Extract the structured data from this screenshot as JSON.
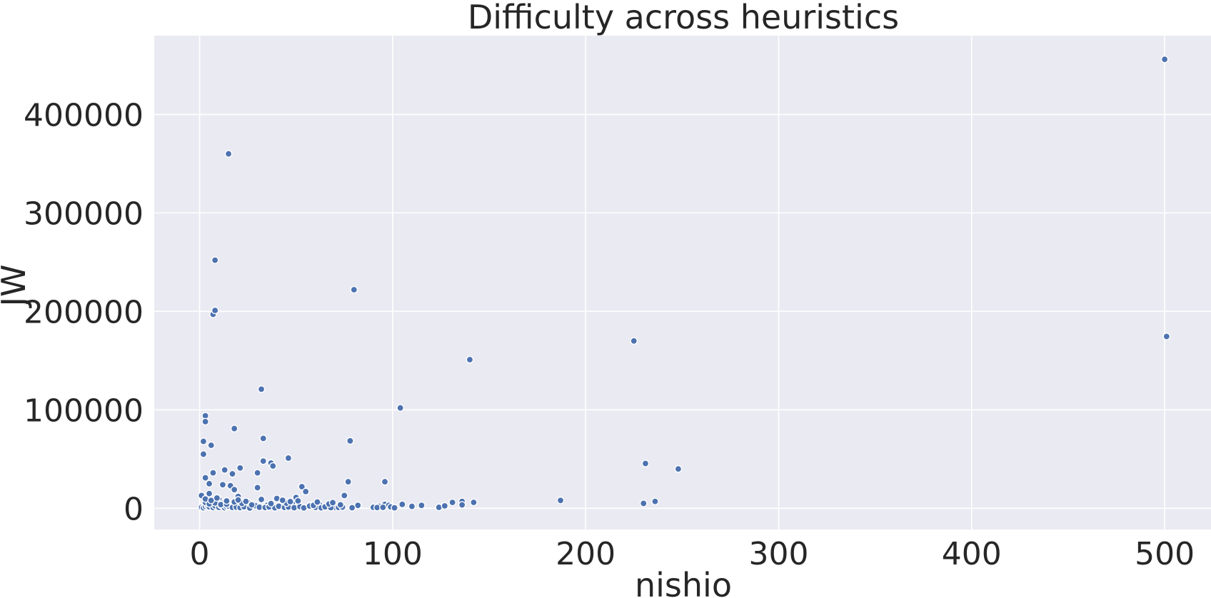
{
  "chart_data": {
    "type": "scatter",
    "title": "Difficulty across heuristics",
    "xlabel": "nishio",
    "ylabel": "JW",
    "xlim": [
      -23.5,
      524
    ],
    "ylim": [
      -21500,
      480000
    ],
    "xticks": [
      0,
      100,
      200,
      300,
      400,
      500
    ],
    "yticks": [
      0,
      100000,
      200000,
      300000,
      400000
    ],
    "grid": true,
    "colors": {
      "background": "#eaeaf2",
      "grid": "#ffffff",
      "point": "#4c72b0",
      "text": "#262626"
    },
    "series": [
      {
        "x": [
          500,
          501,
          15,
          8,
          80,
          7,
          8,
          225,
          140,
          32,
          104,
          3,
          3,
          18,
          33,
          2,
          6,
          78,
          46,
          2,
          33,
          37,
          38,
          231,
          13,
          21,
          248,
          17,
          7,
          30,
          3,
          96,
          5,
          12,
          16,
          77,
          30,
          53,
          55,
          18,
          2,
          4,
          5,
          10,
          1,
          6,
          9,
          12,
          20,
          25,
          28,
          35,
          40,
          42,
          48,
          50,
          58,
          62,
          66,
          70,
          75,
          82,
          90,
          93,
          96,
          98,
          100,
          105,
          110,
          115,
          124,
          127,
          131,
          136,
          136,
          142,
          187,
          230,
          236,
          1,
          2,
          3,
          4,
          5,
          6,
          7,
          8,
          10,
          11,
          13,
          14,
          15,
          17,
          19,
          21,
          23,
          26,
          29,
          31,
          34,
          36,
          39,
          41,
          44,
          46,
          49,
          52,
          54,
          57,
          60,
          63,
          65,
          68,
          72,
          74,
          79,
          92,
          95,
          99,
          101,
          3,
          5,
          8,
          11,
          14,
          18,
          22,
          27,
          37,
          45,
          59,
          67,
          73,
          3,
          6,
          9,
          14,
          20,
          24,
          32,
          43,
          47,
          51,
          61,
          69
        ],
        "y": [
          456000,
          174500,
          360000,
          252000,
          222000,
          197000,
          201000,
          170000,
          151000,
          121000,
          102000,
          94000,
          88000,
          81000,
          71000,
          68000,
          64000,
          68500,
          51000,
          55000,
          48000,
          46000,
          43000,
          45500,
          39000,
          41000,
          40000,
          35000,
          36000,
          36000,
          31000,
          27000,
          25000,
          24000,
          23000,
          27000,
          21000,
          22000,
          17000,
          19000,
          12000,
          11000,
          15000,
          9000,
          13000,
          8000,
          7000,
          5000,
          12000,
          6000,
          4000,
          3000,
          10000,
          2000,
          5000,
          11000,
          3000,
          4000,
          2000,
          1000,
          13000,
          3000,
          1000,
          2000,
          4000,
          3000,
          1000,
          4000,
          2000,
          3000,
          1000,
          2500,
          6000,
          7000,
          3500,
          6000,
          8000,
          5000,
          7000,
          1000,
          500,
          2000,
          3000,
          1500,
          4000,
          800,
          2500,
          1000,
          3000,
          500,
          1800,
          2200,
          900,
          1200,
          700,
          1600,
          300,
          2600,
          1100,
          800,
          1400,
          500,
          2100,
          900,
          1300,
          600,
          1700,
          400,
          2300,
          1000,
          500,
          1500,
          700,
          900,
          1200,
          600,
          800,
          1000,
          1400,
          500,
          6000,
          4500,
          5500,
          3800,
          4200,
          6500,
          5000,
          3500,
          4800,
          5200,
          3000,
          4400,
          3600,
          9500,
          8000,
          10500,
          7500,
          8500,
          7000,
          9000,
          8200,
          6800,
          7600,
          6400,
          5800
        ]
      }
    ]
  }
}
